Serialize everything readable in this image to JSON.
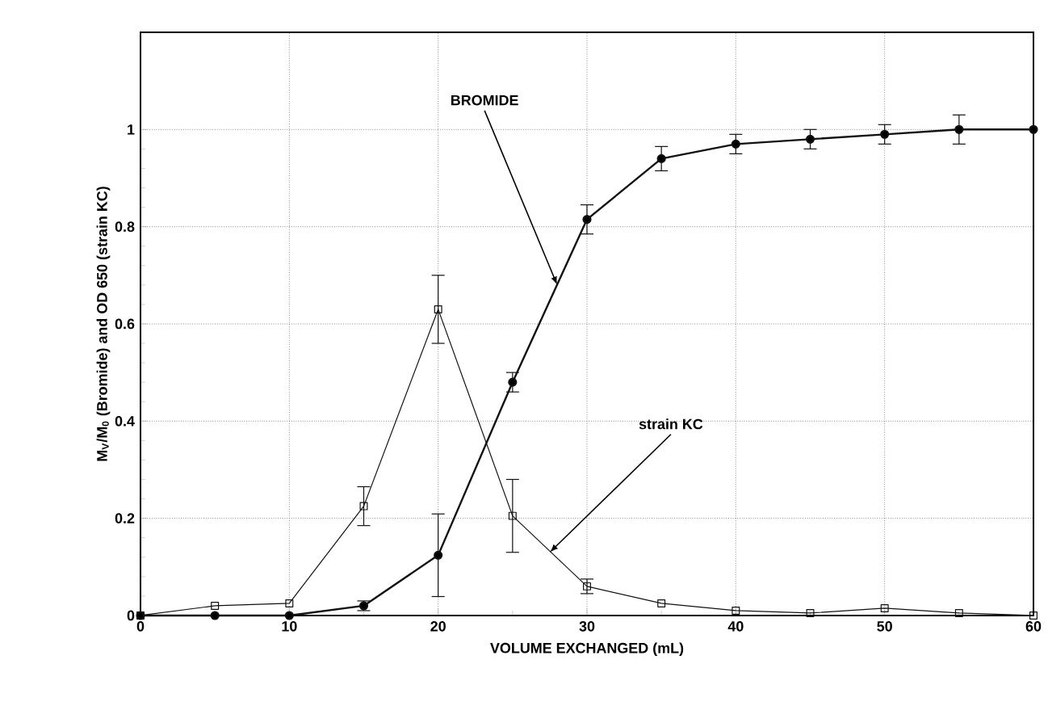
{
  "chart_data": {
    "type": "line",
    "xlabel": "VOLUME EXCHANGED (mL)",
    "ylabel": "M$_{V}$/M$_{0}$ (Bromide) and OD 650 (strain KC)",
    "x": [
      0,
      5,
      10,
      15,
      20,
      25,
      30,
      35,
      40,
      45,
      50,
      55,
      60
    ],
    "series": [
      {
        "color": "#111111",
        "marker": "circle",
        "values": [
          0,
          0,
          0,
          0.02,
          0.124,
          0.48,
          0.815,
          0.94,
          0.97,
          0.98,
          0.99,
          1.0,
          1.0
        ],
        "errors": [
          null,
          null,
          null,
          0.01,
          0.085,
          0.02,
          0.03,
          0.025,
          0.02,
          0.02,
          0.02,
          0.03,
          null
        ]
      },
      {
        "color": "#111111",
        "marker": "square",
        "values": [
          0,
          0.02,
          0.025,
          0.225,
          0.63,
          0.205,
          0.06,
          0.025,
          0.01,
          0.005,
          0.015,
          0.005,
          0
        ],
        "errors": [
          null,
          null,
          null,
          0.04,
          0.07,
          0.075,
          0.015,
          null,
          null,
          null,
          null,
          null,
          null
        ]
      }
    ],
    "annotations": [
      {
        "text": "BROMIDE",
        "x": 28,
        "y": 0.68
      },
      {
        "text": "strain KC",
        "x": 27.5,
        "y": 0.13
      }
    ],
    "xlim": [
      0,
      60
    ],
    "xticks": [
      0,
      10,
      20,
      30,
      40,
      50,
      60
    ],
    "ylim": [
      0,
      1.2
    ],
    "yticks": [
      0,
      0.2,
      0.4,
      0.6,
      0.8,
      1
    ],
    "grid": true,
    "line_style": "solid"
  }
}
